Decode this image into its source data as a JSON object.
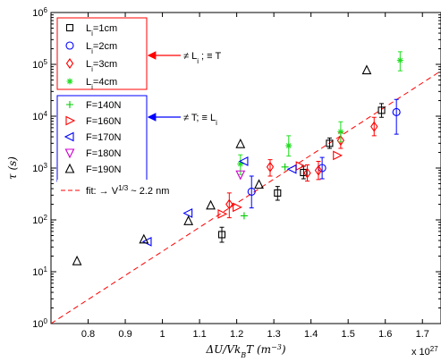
{
  "chart_data": {
    "type": "scatter",
    "title": "",
    "xlabel": "ΔU/Vk_BT (m^-3)",
    "ylabel": "τ (s)",
    "xlim": [
      0.7,
      1.75
    ],
    "xlim_unit_multiplier": "x 10^27",
    "ylim": [
      1,
      1000000
    ],
    "y_scale": "log",
    "grid": false,
    "x_ticks": [
      "0.8",
      "0.9",
      "1",
      "1.1",
      "1.2",
      "1.3",
      "1.4",
      "1.5",
      "1.6",
      "1.7"
    ],
    "x_tick_values": [
      0.8,
      0.9,
      1.0,
      1.1,
      1.2,
      1.3,
      1.4,
      1.5,
      1.6,
      1.7
    ],
    "y_tick_values": [
      1,
      10,
      100,
      1000,
      10000,
      100000,
      1000000
    ],
    "y_tick_labels": [
      {
        "base": "10",
        "exp": "0"
      },
      {
        "base": "10",
        "exp": "1"
      },
      {
        "base": "10",
        "exp": "2"
      },
      {
        "base": "10",
        "exp": "3"
      },
      {
        "base": "10",
        "exp": "4"
      },
      {
        "base": "10",
        "exp": "5"
      },
      {
        "base": "10",
        "exp": "6"
      }
    ],
    "x_multiplier_label": {
      "base": "x 10",
      "exp": "27"
    },
    "xlabel_parts": {
      "pre": "ΔU/Vk",
      "sub": "B",
      "mid": "T (m",
      "sup": "−3",
      "post": ")"
    },
    "series": [
      {
        "name": "Li=1cm",
        "name_parts": {
          "main": "L",
          "sub": "i",
          "rest": "=1cm"
        },
        "marker": "square",
        "color": "#000000",
        "points": [
          [
            1.16,
            52,
            37,
            72
          ],
          [
            1.31,
            330,
            240,
            440
          ],
          [
            1.38,
            820,
            620,
            1080
          ],
          [
            1.45,
            3000,
            2400,
            3800
          ],
          [
            1.59,
            13000,
            9500,
            17500
          ]
        ]
      },
      {
        "name": "Li=2cm",
        "name_parts": {
          "main": "L",
          "sub": "i",
          "rest": "=2cm"
        },
        "marker": "circle",
        "color": "#0000ff",
        "points": [
          [
            1.24,
            350,
            170,
            700
          ],
          [
            1.43,
            1000,
            620,
            1600
          ],
          [
            1.63,
            12000,
            4500,
            21000
          ]
        ]
      },
      {
        "name": "Li=3cm",
        "name_parts": {
          "main": "L",
          "sub": "i",
          "rest": "=3cm"
        },
        "marker": "diamond",
        "color": "#ff0000",
        "points": [
          [
            1.18,
            200,
            110,
            330
          ],
          [
            1.29,
            1050,
            700,
            1450
          ],
          [
            1.39,
            800,
            560,
            1150
          ],
          [
            1.42,
            900,
            600,
            1350
          ],
          [
            1.48,
            3400,
            2400,
            4800
          ],
          [
            1.57,
            6300,
            4200,
            9500
          ]
        ]
      },
      {
        "name": "Li=4cm",
        "name_parts": {
          "main": "L",
          "sub": "i",
          "rest": "=4cm"
        },
        "marker": "star",
        "color": "#22dd22",
        "points": [
          [
            1.21,
            1200,
            750,
            1800
          ],
          [
            1.34,
            2700,
            1700,
            4200
          ],
          [
            1.48,
            5000,
            3200,
            7800
          ],
          [
            1.64,
            120000,
            75000,
            175000
          ]
        ]
      }
    ],
    "force_series": [
      {
        "name": "F=140N",
        "marker": "plus",
        "color": "#00cc00",
        "points": [
          [
            1.22,
            120
          ],
          [
            1.33,
            1050
          ]
        ]
      },
      {
        "name": "F=160N",
        "marker": "triangle-right",
        "color": "#ff0000",
        "points": [
          [
            1.16,
            130
          ],
          [
            1.2,
            175
          ],
          [
            1.37,
            1100
          ],
          [
            1.47,
            1750
          ]
        ]
      },
      {
        "name": "F=170N",
        "marker": "triangle-left",
        "color": "#0000ff",
        "points": [
          [
            0.96,
            38
          ],
          [
            1.07,
            135
          ],
          [
            1.22,
            1350
          ],
          [
            1.35,
            950
          ]
        ]
      },
      {
        "name": "F=180N",
        "marker": "triangle-down",
        "color": "#cc00cc",
        "points": [
          [
            1.21,
            750
          ]
        ]
      },
      {
        "name": "F=190N",
        "marker": "triangle-up",
        "color": "#000000",
        "points": [
          [
            0.77,
            16
          ],
          [
            0.95,
            42
          ],
          [
            1.07,
            95
          ],
          [
            1.13,
            190
          ],
          [
            1.21,
            2900
          ],
          [
            1.26,
            480
          ],
          [
            1.55,
            77000
          ]
        ]
      }
    ],
    "fit": {
      "name": "fit: → V^1/3 ~ 2.2 nm",
      "name_parts": {
        "pre": "fit: → V",
        "sup": "1/3",
        "post": " ~ 2.2 nm"
      },
      "style": "dashed",
      "color": "#ff0000",
      "points": [
        [
          0.7,
          1
        ],
        [
          1.75,
          75000
        ]
      ]
    },
    "legend_position": "top-left",
    "annotations": [
      {
        "text_parts": {
          "pre": "≠ L",
          "sub": "i",
          "post": " ; ≡ T"
        },
        "color": "#ff0000",
        "points_to": "Li legend group"
      },
      {
        "text_parts": {
          "pre": "≠ T; ≡ L",
          "sub": "i",
          "post": ""
        },
        "color": "#0000ff",
        "points_to": "F legend group"
      }
    ]
  },
  "colors": {
    "li_box": "#ff0000",
    "force_box": "#0000ff",
    "axes": "#000000"
  }
}
